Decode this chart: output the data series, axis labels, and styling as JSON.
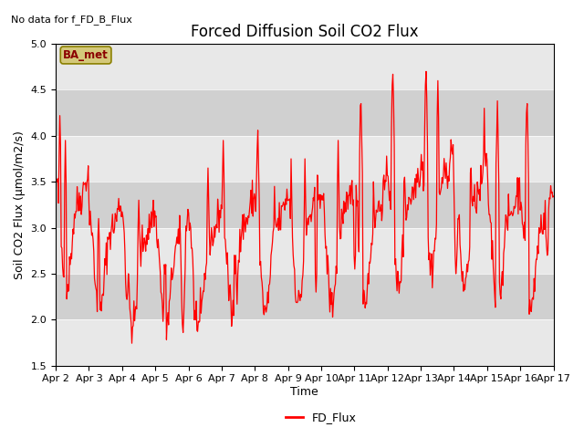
{
  "title": "Forced Diffusion Soil CO2 Flux",
  "no_data_label": "No data for f_FD_B_Flux",
  "ba_met_label": "BA_met",
  "xlabel": "Time",
  "ylabel": "Soil CO2 Flux (μmol/m2/s)",
  "ylim": [
    1.5,
    5.0
  ],
  "legend_label": "FD_Flux",
  "line_color": "red",
  "bg_light": "#e8e8e8",
  "bg_dark": "#d0d0d0",
  "tick_labels": [
    "Apr 2",
    "Apr 3",
    "Apr 4",
    "Apr 5",
    "Apr 6",
    "Apr 7",
    "Apr 8",
    "Apr 9",
    "Apr 10",
    "Apr 11",
    "Apr 12",
    "Apr 13",
    "Apr 14",
    "Apr 15",
    "Apr 16",
    "Apr 17"
  ],
  "yticks": [
    1.5,
    2.0,
    2.5,
    3.0,
    3.5,
    4.0,
    4.5,
    5.0
  ],
  "title_fontsize": 12,
  "axis_fontsize": 9,
  "tick_fontsize": 8,
  "legend_fontsize": 9,
  "seed": 42
}
